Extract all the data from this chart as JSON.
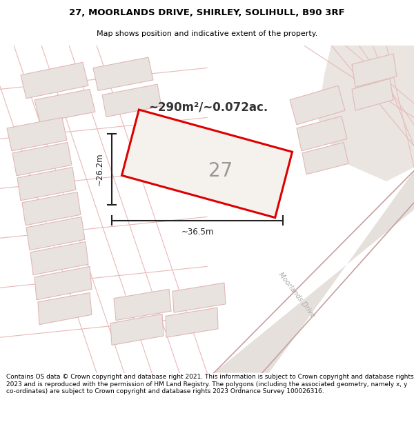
{
  "title_line1": "27, MOORLANDS DRIVE, SHIRLEY, SOLIHULL, B90 3RF",
  "title_line2": "Map shows position and indicative extent of the property.",
  "area_text": "~290m²/~0.072ac.",
  "house_number": "27",
  "dim_width": "~36.5m",
  "dim_height": "~26.2m",
  "footer": "Contains OS data © Crown copyright and database right 2021. This information is subject to Crown copyright and database rights 2023 and is reproduced with the permission of HM Land Registry. The polygons (including the associated geometry, namely x, y co-ordinates) are subject to Crown copyright and database rights 2023 Ordnance Survey 100026316.",
  "map_bg": "#f2eeea",
  "plot_edge_color": "#dd0000",
  "plot_fill_color": "#f5f2ee",
  "building_fill": "#e8e3de",
  "building_edge": "#e0b8b8",
  "road_line_color": "#e8b8b8",
  "road_bg": "#e8e3de",
  "street_label": "Moorlands Drive",
  "dim_color": "#222222",
  "text_color": "#333333"
}
